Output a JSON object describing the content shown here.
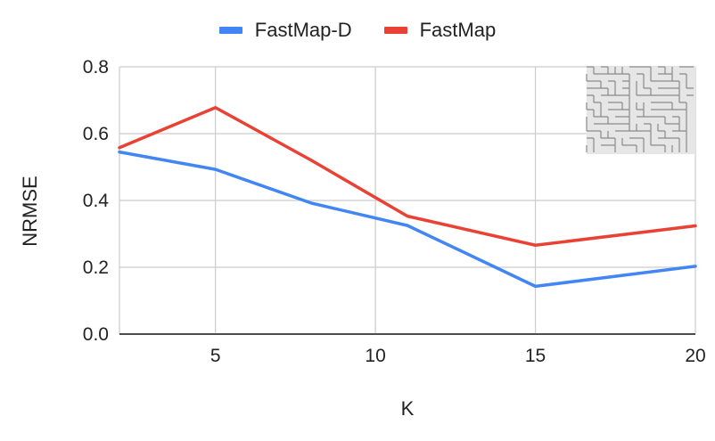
{
  "chart_data": {
    "type": "line",
    "x": [
      2,
      5,
      8,
      11,
      15,
      20
    ],
    "series": [
      {
        "name": "FastMap-D",
        "color": "#4285F4",
        "values": [
          0.545,
          0.493,
          0.392,
          0.325,
          0.143,
          0.203
        ]
      },
      {
        "name": "FastMap",
        "color": "#E94235",
        "values": [
          0.558,
          0.678,
          0.52,
          0.353,
          0.266,
          0.324
        ]
      }
    ],
    "xlabel": "K",
    "ylabel": "NRMSE",
    "xlim": [
      2,
      20
    ],
    "ylim": [
      0,
      0.8
    ],
    "xticks": [
      5,
      10,
      15,
      20
    ],
    "yticks": [
      0.0,
      0.2,
      0.4,
      0.6,
      0.8
    ],
    "ytick_labels": [
      "0.0",
      "0.2",
      "0.4",
      "0.6",
      "0.8"
    ],
    "grid": true,
    "legend_position": "top-center",
    "inset": "maze-map-thumbnail"
  }
}
